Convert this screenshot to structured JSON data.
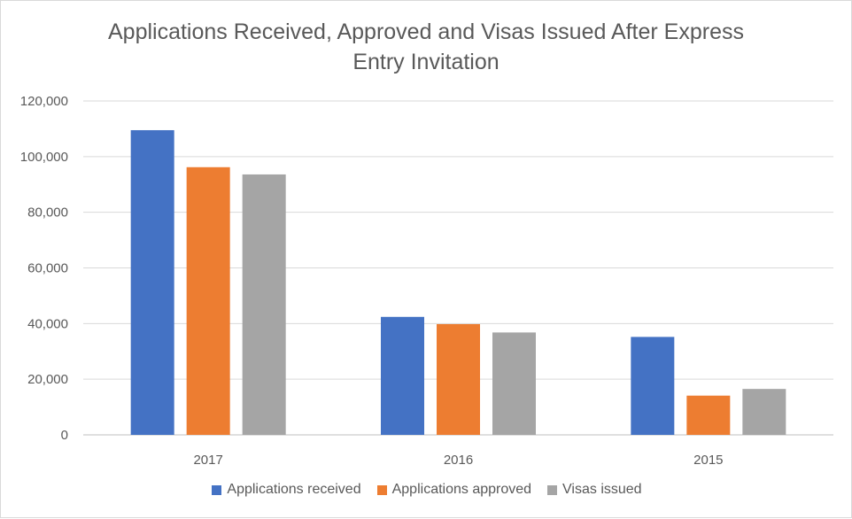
{
  "chart_data": {
    "type": "bar",
    "title_lines": [
      "Applications Received, Approved and Visas Issued After Express",
      "Entry Invitation"
    ],
    "categories": [
      "2017",
      "2016",
      "2015"
    ],
    "series": [
      {
        "name": "Applications received",
        "color": "#4472C4",
        "values": [
          109500,
          42400,
          35200
        ]
      },
      {
        "name": "Applications approved",
        "color": "#ED7D31",
        "values": [
          96200,
          39800,
          14100
        ]
      },
      {
        "name": "Visas issued",
        "color": "#A5A5A5",
        "values": [
          93600,
          36800,
          16500
        ]
      }
    ],
    "ylim": [
      0,
      120000
    ],
    "yticks": [
      "0",
      "20,000",
      "40,000",
      "60,000",
      "80,000",
      "100,000",
      "120,000"
    ],
    "ytick_values": [
      0,
      20000,
      40000,
      60000,
      80000,
      100000,
      120000
    ],
    "grid": true,
    "legend_position": "bottom"
  }
}
